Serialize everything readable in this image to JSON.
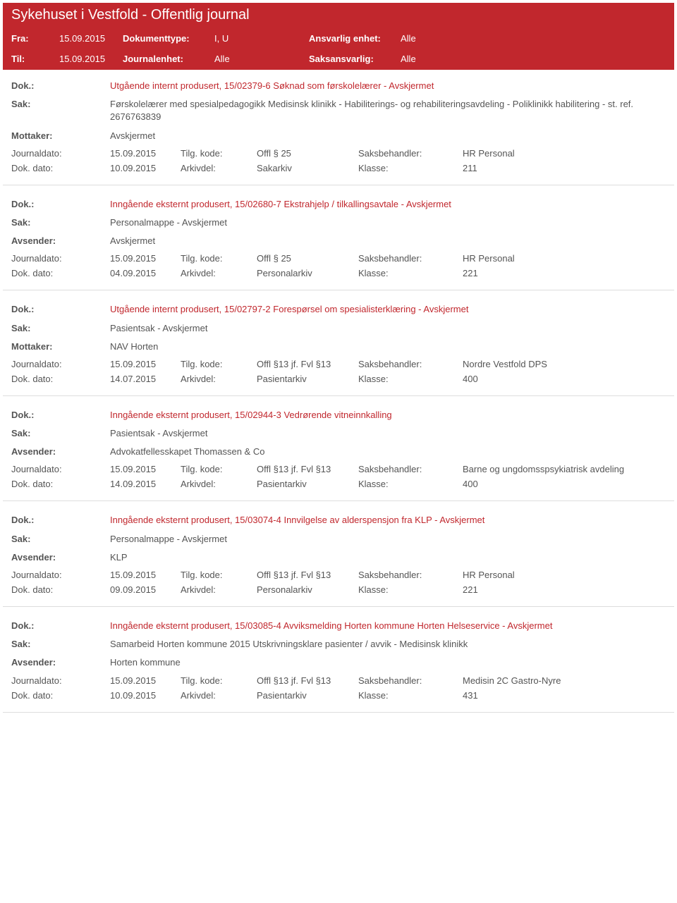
{
  "header": {
    "title": "Sykehuset i Vestfold - Offentlig journal",
    "fra_label": "Fra:",
    "fra_val": "15.09.2015",
    "til_label": "Til:",
    "til_val": "15.09.2015",
    "doktype_label": "Dokumenttype:",
    "doktype_val": "I, U",
    "jenh_label": "Journalenhet:",
    "jenh_val": "Alle",
    "ansv_label": "Ansvarlig enhet:",
    "ansv_val": "Alle",
    "saks_label": "Saksansvarlig:",
    "saks_val": "Alle"
  },
  "labels": {
    "dok": "Dok.:",
    "sak": "Sak:",
    "mottaker": "Mottaker:",
    "avsender": "Avsender:",
    "journaldato": "Journaldato:",
    "tilg": "Tilg. kode:",
    "saksbeh": "Saksbehandler:",
    "dokdato": "Dok. dato:",
    "arkivdel": "Arkivdel:",
    "klasse": "Klasse:"
  },
  "entries": [
    {
      "dok": "Utgående internt produsert, 15/02379-6 Søknad som førskolelærer - Avskjermet",
      "sak": "Førskolelærer med spesialpedagogikk Medisinsk klinikk - Habiliterings- og rehabiliteringsavdeling - Poliklinikk habilitering - st. ref. 2676763839",
      "party_label": "Mottaker:",
      "party": "Avskjermet",
      "jd": "15.09.2015",
      "tilg": "Offl § 25",
      "sb": "HR Personal",
      "dd": "10.09.2015",
      "ark": "Sakarkiv",
      "kl": "211"
    },
    {
      "dok": "Inngående eksternt produsert, 15/02680-7 Ekstrahjelp / tilkallingsavtale - Avskjermet",
      "sak": "Personalmappe - Avskjermet",
      "party_label": "Avsender:",
      "party": "Avskjermet",
      "jd": "15.09.2015",
      "tilg": "Offl § 25",
      "sb": "HR Personal",
      "dd": "04.09.2015",
      "ark": "Personalarkiv",
      "kl": "221"
    },
    {
      "dok": "Utgående internt produsert, 15/02797-2 Forespørsel om spesialisterklæring - Avskjermet",
      "sak": "Pasientsak - Avskjermet",
      "party_label": "Mottaker:",
      "party": "NAV Horten",
      "jd": "15.09.2015",
      "tilg": "Offl §13 jf. Fvl §13",
      "sb": "Nordre Vestfold DPS",
      "dd": "14.07.2015",
      "ark": "Pasientarkiv",
      "kl": "400"
    },
    {
      "dok": "Inngående eksternt produsert, 15/02944-3 Vedrørende vitneinnkalling",
      "sak": "Pasientsak - Avskjermet",
      "party_label": "Avsender:",
      "party": "Advokatfellesskapet Thomassen & Co",
      "jd": "15.09.2015",
      "tilg": "Offl §13 jf. Fvl §13",
      "sb": "Barne og ungdomsspsykiatrisk avdeling",
      "dd": "14.09.2015",
      "ark": "Pasientarkiv",
      "kl": "400"
    },
    {
      "dok": "Inngående eksternt produsert, 15/03074-4 Innvilgelse av alderspensjon fra KLP - Avskjermet",
      "sak": "Personalmappe - Avskjermet",
      "party_label": "Avsender:",
      "party": "KLP",
      "jd": "15.09.2015",
      "tilg": "Offl §13 jf. Fvl §13",
      "sb": "HR Personal",
      "dd": "09.09.2015",
      "ark": "Personalarkiv",
      "kl": "221"
    },
    {
      "dok": "Inngående eksternt produsert, 15/03085-4 Avviksmelding Horten kommune Horten Helseservice - Avskjermet",
      "sak": "Samarbeid Horten kommune 2015 Utskrivningsklare pasienter / avvik - Medisinsk klinikk",
      "party_label": "Avsender:",
      "party": "Horten kommune",
      "jd": "15.09.2015",
      "tilg": "Offl §13 jf. Fvl §13",
      "sb": "Medisin 2C Gastro-Nyre",
      "dd": "10.09.2015",
      "ark": "Pasientarkiv",
      "kl": "431"
    }
  ]
}
